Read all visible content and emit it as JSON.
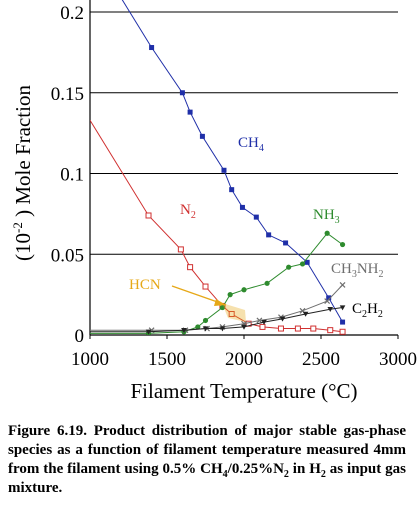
{
  "chart_data": {
    "type": "line",
    "xlabel": "Filament Temperature (°C)",
    "ylabel": "(10⁻²) Mole Fraction",
    "xlim": [
      1000,
      3000
    ],
    "ylim": [
      0,
      0.2
    ],
    "x_ticks": [
      "1000",
      "1500",
      "2000",
      "2500",
      "3000"
    ],
    "y_ticks": [
      "0",
      "0.05",
      "0.1",
      "0.15",
      "0.2"
    ],
    "grid": "horizontal",
    "series": [
      {
        "name": "CH4",
        "label_main": "CH",
        "label_sub": "4",
        "color": "#1f2fa8",
        "marker": "filled-square",
        "points": [
          [
            1000,
            0.24
          ],
          [
            1400,
            0.178
          ],
          [
            1600,
            0.15
          ],
          [
            1650,
            0.138
          ],
          [
            1730,
            0.123
          ],
          [
            1870,
            0.102
          ],
          [
            1920,
            0.09
          ],
          [
            1990,
            0.079
          ],
          [
            2080,
            0.073
          ],
          [
            2160,
            0.062
          ],
          [
            2270,
            0.057
          ],
          [
            2410,
            0.045
          ],
          [
            2550,
            0.023
          ],
          [
            2640,
            0.008
          ]
        ]
      },
      {
        "name": "N2",
        "label_main": "N",
        "label_sub": "2",
        "color": "#d03030",
        "marker": "open-square",
        "points": [
          [
            1000,
            0.133
          ],
          [
            1380,
            0.074
          ],
          [
            1590,
            0.053
          ],
          [
            1650,
            0.042
          ],
          [
            1750,
            0.03
          ],
          [
            1860,
            0.018
          ],
          [
            1920,
            0.013
          ],
          [
            2030,
            0.007
          ],
          [
            2120,
            0.005
          ],
          [
            2240,
            0.004
          ],
          [
            2350,
            0.004
          ],
          [
            2450,
            0.004
          ],
          [
            2560,
            0.003
          ],
          [
            2640,
            0.002
          ]
        ]
      },
      {
        "name": "NH3",
        "label_main": "NH",
        "label_sub": "3",
        "color": "#2e8b2e",
        "marker": "filled-circle",
        "points": [
          [
            1000,
            0.001
          ],
          [
            1380,
            0.001
          ],
          [
            1610,
            0.002
          ],
          [
            1700,
            0.005
          ],
          [
            1750,
            0.009
          ],
          [
            1860,
            0.017
          ],
          [
            1910,
            0.025
          ],
          [
            2000,
            0.028
          ],
          [
            2150,
            0.032
          ],
          [
            2290,
            0.042
          ],
          [
            2380,
            0.044
          ],
          [
            2540,
            0.063
          ],
          [
            2640,
            0.056
          ]
        ]
      },
      {
        "name": "CH3NH2",
        "label_main": "CH",
        "label_sub": "3",
        "label_main2": "NH",
        "label_sub2": "2",
        "color": "#6e6e6e",
        "marker": "x-mark",
        "points": [
          [
            1000,
            0.003
          ],
          [
            1400,
            0.003
          ],
          [
            1620,
            0.003
          ],
          [
            1760,
            0.004
          ],
          [
            1860,
            0.005
          ],
          [
            2000,
            0.007
          ],
          [
            2100,
            0.009
          ],
          [
            2240,
            0.011
          ],
          [
            2380,
            0.015
          ],
          [
            2540,
            0.021
          ],
          [
            2640,
            0.031
          ]
        ]
      },
      {
        "name": "C2H2",
        "label_main": "C",
        "label_sub": "2",
        "label_main2": "H",
        "label_sub2": "2",
        "color": "#222222",
        "marker": "triangle",
        "points": [
          [
            1000,
            0.002
          ],
          [
            1380,
            0.002
          ],
          [
            1610,
            0.003
          ],
          [
            1750,
            0.004
          ],
          [
            1860,
            0.004
          ],
          [
            2000,
            0.005
          ],
          [
            2130,
            0.008
          ],
          [
            2250,
            0.01
          ],
          [
            2400,
            0.013
          ],
          [
            2560,
            0.016
          ],
          [
            2640,
            0.017
          ]
        ]
      }
    ],
    "annotations": [
      {
        "text": "HCN",
        "color": "#e6a817"
      }
    ]
  },
  "caption": {
    "lead": "Figure 6.19.",
    "text_a": " Product distribution of major stable gas-phase species as a function of filament temperature measured 4mm from the filament using 0.5% CH",
    "sub_a": "4",
    "text_b": "/0.25%N",
    "sub_b": "2",
    "text_c": " in H",
    "sub_c": "2",
    "text_d": " as input gas mixture."
  }
}
